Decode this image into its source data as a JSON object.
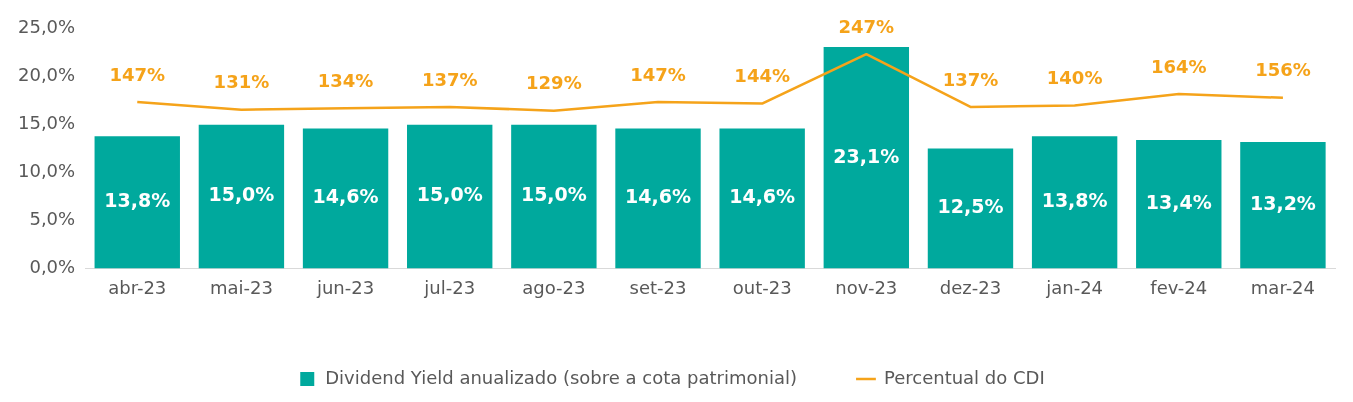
{
  "chart_data": {
    "type": "bar",
    "categories": [
      "abr-23",
      "mai-23",
      "jun-23",
      "jul-23",
      "ago-23",
      "set-23",
      "out-23",
      "nov-23",
      "dez-23",
      "jan-24",
      "fev-24",
      "mar-24"
    ],
    "series": [
      {
        "name": "Dividend Yield anualizado (sobre a cota patrimonial)",
        "color": "#00a99d",
        "values": [
          13.8,
          15.0,
          14.6,
          15.0,
          15.0,
          14.6,
          14.6,
          23.1,
          12.5,
          13.8,
          13.4,
          13.2
        ],
        "value_labels": [
          "13,8%",
          "15,0%",
          "14,6%",
          "15,0%",
          "15,0%",
          "14,6%",
          "14,6%",
          "23,1%",
          "12,5%",
          "13,8%",
          "13,4%",
          "13,2%"
        ]
      },
      {
        "name": "Percentual do CDI",
        "type": "line",
        "axis": "y2",
        "color": "#f5a31a",
        "values": [
          147,
          131,
          134,
          137,
          129,
          147,
          144,
          247,
          137,
          140,
          164,
          156
        ],
        "value_labels": [
          "147%",
          "131%",
          "134%",
          "137%",
          "129%",
          "147%",
          "144%",
          "247%",
          "137%",
          "140%",
          "164%",
          "156%"
        ]
      }
    ],
    "ylim": [
      0,
      25
    ],
    "yticks": [
      {
        "value": 0,
        "label": "0,0%"
      },
      {
        "value": 5,
        "label": "5,0%"
      },
      {
        "value": 10,
        "label": "10,0%"
      },
      {
        "value": 15,
        "label": "15,0%"
      },
      {
        "value": 20,
        "label": "20,0%"
      },
      {
        "value": 25,
        "label": "25,0%"
      }
    ],
    "grid": false,
    "legend": "bottom",
    "marker": "none",
    "line_style": "solid"
  }
}
